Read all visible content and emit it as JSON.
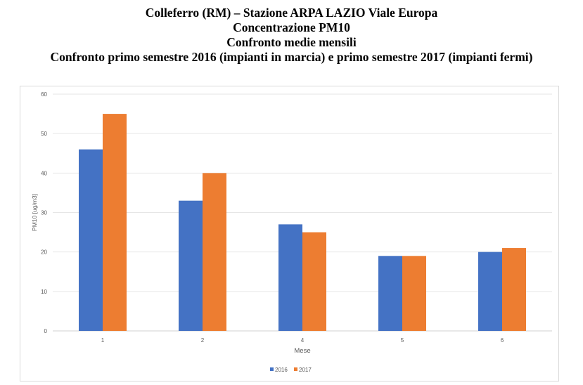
{
  "chart_data": {
    "type": "bar",
    "title": [
      "Colleferro (RM) – Stazione ARPA LAZIO Viale Europa",
      "Concentrazione PM10",
      "Confronto medie mensili",
      "Confronto primo semestre 2016 (impianti in marcia) e primo semestre 2017 (impianti fermi)"
    ],
    "xlabel": "Mese",
    "ylabel": "PM10 [ug/m3]",
    "categories": [
      "1",
      "2",
      "4",
      "5",
      "6"
    ],
    "series": [
      {
        "name": "2016",
        "color": "#4472c4",
        "values": [
          46,
          33,
          27,
          19,
          20
        ]
      },
      {
        "name": "2017",
        "color": "#ed7d31",
        "values": [
          55,
          40,
          25,
          19,
          21
        ]
      }
    ],
    "ylim": [
      0,
      60
    ],
    "yticks": [
      0,
      10,
      20,
      30,
      40,
      50,
      60
    ],
    "grid": true,
    "legend": "bottom"
  }
}
